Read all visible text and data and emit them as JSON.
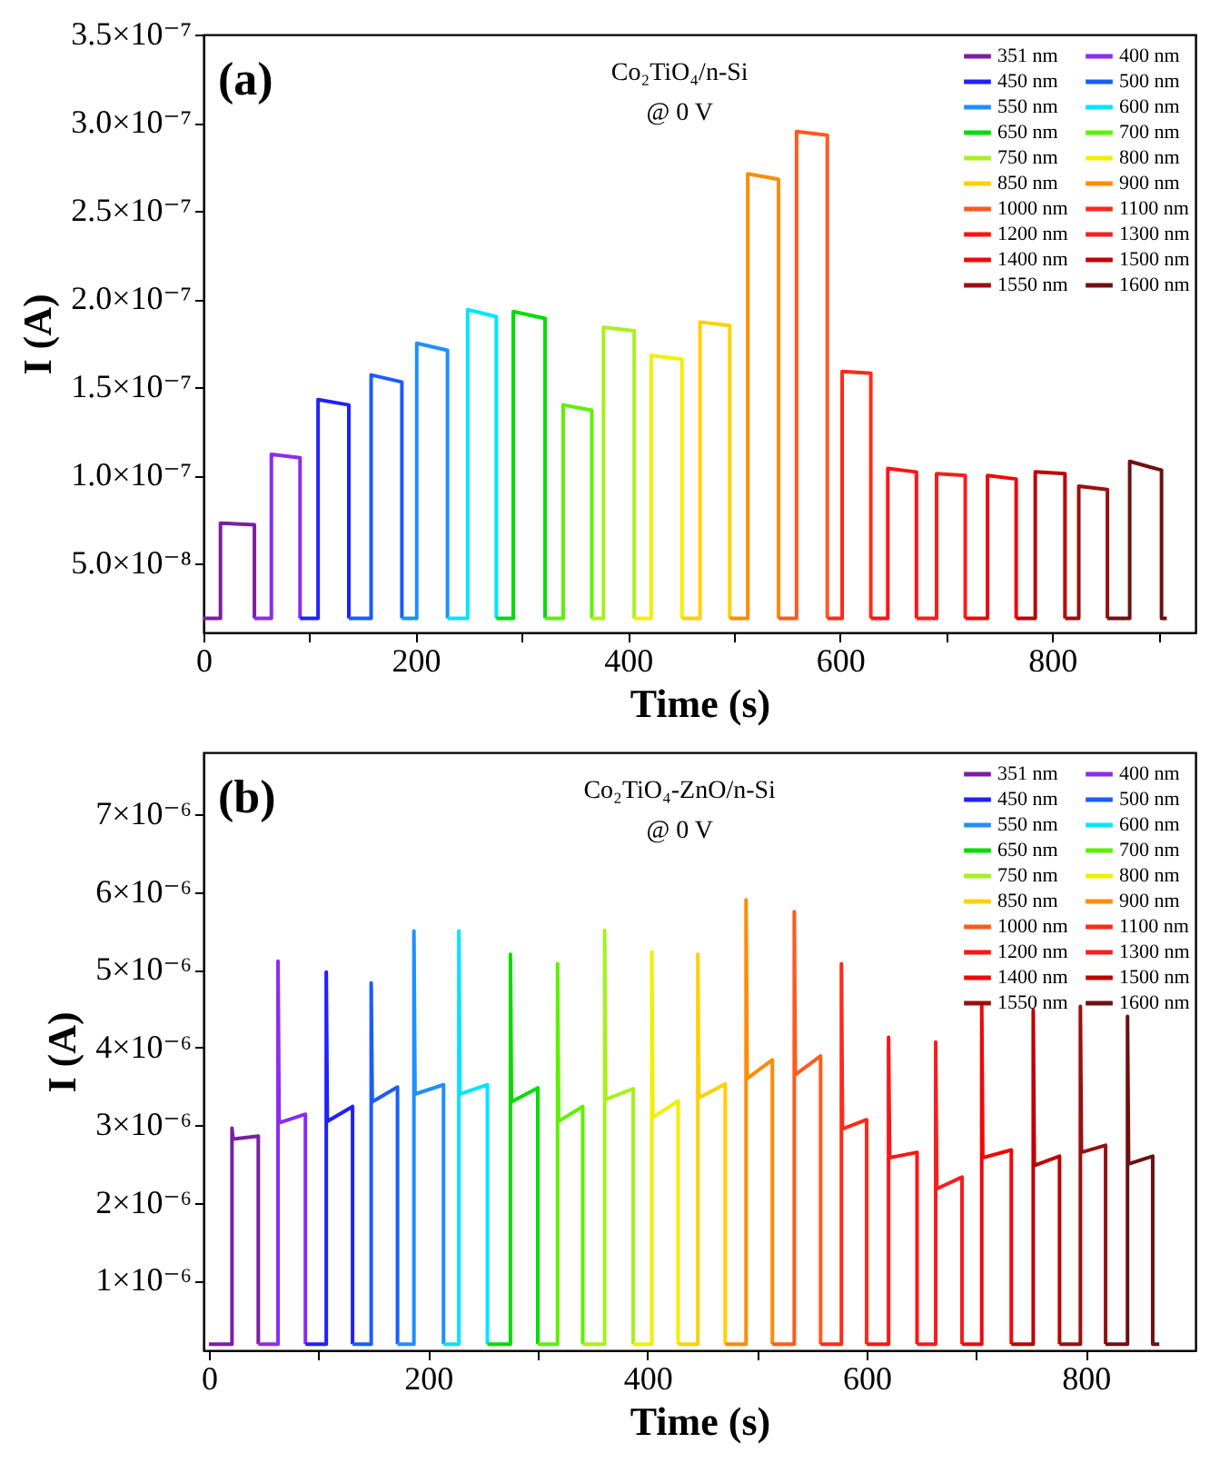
{
  "chart_data": [
    {
      "type": "line",
      "title": "(a)",
      "annotations": [
        "Co₂TiO₄/n-Si",
        "@ 0 V"
      ],
      "xlabel": "Time (s)",
      "ylabel": "I (A)",
      "legend": "top right",
      "xlim": [
        0,
        935
      ],
      "ylim": [
        1.1e-08,
        3.5e-07
      ],
      "xticks": [
        0,
        {
          "value": 100,
          "label": null
        },
        200,
        {
          "value": 300,
          "label": null
        },
        400,
        {
          "value": 500,
          "label": null
        },
        600,
        {
          "value": 700,
          "label": null
        },
        800,
        {
          "value": 900,
          "label": null
        }
      ],
      "yticks": [
        {
          "value": 5e-08,
          "label": "5.0×10⁻⁸"
        },
        {
          "value": 1e-07,
          "label": "1.0×10⁻⁷"
        },
        {
          "value": 1.5e-07,
          "label": "1.5×10⁻⁷"
        },
        {
          "value": 2e-07,
          "label": "2.0×10⁻⁷"
        },
        {
          "value": 2.5e-07,
          "label": "2.5×10⁻⁷"
        },
        {
          "value": 3e-07,
          "label": "3.0×10⁻⁷"
        },
        {
          "value": 3.5e-07,
          "label": "3.5×10⁻⁷"
        }
      ],
      "series": [
        {
          "name": "351 nm",
          "color": "#7b1fa2",
          "x": [
            0,
            16,
            16,
            48,
            48
          ],
          "values": [
            1.9e-08,
            1.9e-08,
            7.3e-08,
            7.2e-08,
            1.9e-08
          ]
        },
        {
          "name": "400 nm",
          "color": "#8b2cf0",
          "x": [
            48,
            64,
            64,
            91,
            91
          ],
          "values": [
            1.9e-08,
            1.9e-08,
            1.12e-07,
            1.1e-07,
            1.9e-08
          ]
        },
        {
          "name": "450 nm",
          "color": "#2020ff",
          "x": [
            91,
            108,
            108,
            137,
            137
          ],
          "values": [
            1.9e-08,
            1.9e-08,
            1.43e-07,
            1.4e-07,
            1.9e-08
          ]
        },
        {
          "name": "500 nm",
          "color": "#1a5cff",
          "x": [
            137,
            158,
            158,
            187,
            187
          ],
          "values": [
            1.9e-08,
            1.9e-08,
            1.57e-07,
            1.53e-07,
            1.9e-08
          ]
        },
        {
          "name": "550 nm",
          "color": "#1e90ff",
          "x": [
            187,
            201,
            201,
            230,
            230
          ],
          "values": [
            1.9e-08,
            1.9e-08,
            1.75e-07,
            1.71e-07,
            1.9e-08
          ]
        },
        {
          "name": "600 nm",
          "color": "#00e5ff",
          "x": [
            230,
            249,
            249,
            276,
            276
          ],
          "values": [
            1.9e-08,
            1.9e-08,
            1.94e-07,
            1.9e-07,
            1.9e-08
          ]
        },
        {
          "name": "650 nm",
          "color": "#00dd00",
          "x": [
            276,
            292,
            292,
            322,
            322
          ],
          "values": [
            1.9e-08,
            1.9e-08,
            1.93e-07,
            1.89e-07,
            1.9e-08
          ]
        },
        {
          "name": "700 nm",
          "color": "#5ef000",
          "x": [
            322,
            339,
            339,
            366,
            366
          ],
          "values": [
            1.9e-08,
            1.9e-08,
            1.4e-07,
            1.37e-07,
            1.9e-08
          ]
        },
        {
          "name": "750 nm",
          "color": "#a8f020",
          "x": [
            366,
            377,
            377,
            406,
            406
          ],
          "values": [
            1.9e-08,
            1.9e-08,
            1.84e-07,
            1.82e-07,
            1.9e-08
          ]
        },
        {
          "name": "800 nm",
          "color": "#f0f000",
          "x": [
            406,
            422,
            422,
            451,
            451
          ],
          "values": [
            1.9e-08,
            1.9e-08,
            1.68e-07,
            1.66e-07,
            1.9e-08
          ]
        },
        {
          "name": "850 nm",
          "color": "#ffd000",
          "x": [
            451,
            468,
            468,
            496,
            496
          ],
          "values": [
            1.9e-08,
            1.9e-08,
            1.87e-07,
            1.85e-07,
            1.9e-08
          ]
        },
        {
          "name": "900 nm",
          "color": "#ff8c00",
          "x": [
            496,
            513,
            513,
            542,
            542
          ],
          "values": [
            1.9e-08,
            1.9e-08,
            2.71e-07,
            2.68e-07,
            1.9e-08
          ]
        },
        {
          "name": "1000 nm",
          "color": "#ff5a1e",
          "x": [
            542,
            559,
            559,
            588,
            588
          ],
          "values": [
            1.9e-08,
            1.9e-08,
            2.95e-07,
            2.93e-07,
            1.9e-08
          ]
        },
        {
          "name": "1100 nm",
          "color": "#ff2a1a",
          "x": [
            588,
            602,
            602,
            629,
            629
          ],
          "values": [
            1.9e-08,
            1.9e-08,
            1.59e-07,
            1.58e-07,
            1.9e-08
          ]
        },
        {
          "name": "1200 nm",
          "color": "#ff1414",
          "x": [
            629,
            645,
            645,
            672,
            672
          ],
          "values": [
            1.9e-08,
            1.9e-08,
            1.04e-07,
            1.02e-07,
            1.9e-08
          ]
        },
        {
          "name": "1300 nm",
          "color": "#f51e1e",
          "x": [
            672,
            691,
            691,
            718,
            718
          ],
          "values": [
            1.9e-08,
            1.9e-08,
            1.01e-07,
            1e-07,
            1.9e-08
          ]
        },
        {
          "name": "1400 nm",
          "color": "#f00808",
          "x": [
            718,
            739,
            739,
            766,
            766
          ],
          "values": [
            1.9e-08,
            1.9e-08,
            1e-07,
            9.8e-08,
            1.9e-08
          ]
        },
        {
          "name": "1500 nm",
          "color": "#c00000",
          "x": [
            766,
            784,
            784,
            812,
            812
          ],
          "values": [
            1.9e-08,
            1.9e-08,
            1.02e-07,
            1.01e-07,
            1.9e-08
          ]
        },
        {
          "name": "1550 nm",
          "color": "#9a1010",
          "x": [
            812,
            825,
            825,
            852,
            852
          ],
          "values": [
            1.9e-08,
            1.9e-08,
            9.4e-08,
            9.2e-08,
            1.9e-08
          ]
        },
        {
          "name": "1600 nm",
          "color": "#6e1010",
          "x": [
            852,
            873,
            873,
            903,
            903,
            908
          ],
          "values": [
            1.9e-08,
            1.9e-08,
            1.08e-07,
            1.03e-07,
            1.9e-08,
            1.9e-08
          ]
        }
      ]
    },
    {
      "type": "line",
      "title": "(b)",
      "annotations": [
        "Co₂TiO₄-ZnO/n-Si",
        "@ 0 V"
      ],
      "xlabel": "Time (s)",
      "ylabel": "I (A)",
      "legend": "top right",
      "xlim": [
        -5,
        900
      ],
      "ylim": [
        1e-07,
        7.8e-06
      ],
      "xticks": [
        0,
        {
          "value": 100,
          "label": null
        },
        200,
        {
          "value": 300,
          "label": null
        },
        400,
        {
          "value": 500,
          "label": null
        },
        600,
        {
          "value": 700,
          "label": null
        },
        800
      ],
      "yticks": [
        {
          "value": 1e-06,
          "label": "1×10⁻⁶"
        },
        {
          "value": 2e-06,
          "label": "2×10⁻⁶"
        },
        {
          "value": 3e-06,
          "label": "3×10⁻⁶"
        },
        {
          "value": 4e-06,
          "label": "4×10⁻⁶"
        },
        {
          "value": 5e-06,
          "label": "5×10⁻⁶"
        },
        {
          "value": 6e-06,
          "label": "6×10⁻⁶"
        },
        {
          "value": 7e-06,
          "label": "7×10⁻⁶"
        }
      ],
      "series": [
        {
          "name": "351 nm",
          "color": "#7b1fa2",
          "x": [
            0,
            21,
            21,
            22,
            45,
            45
          ],
          "values": [
            1.8e-07,
            1.8e-07,
            2.96e-06,
            2.82e-06,
            2.86e-06,
            1.8e-07
          ]
        },
        {
          "name": "400 nm",
          "color": "#8b2cf0",
          "x": [
            45,
            63,
            63,
            64,
            88,
            88
          ],
          "values": [
            1.8e-07,
            1.8e-07,
            5.11e-06,
            3.03e-06,
            3.14e-06,
            1.8e-07
          ]
        },
        {
          "name": "450 nm",
          "color": "#2020ff",
          "x": [
            88,
            107,
            107,
            108,
            131,
            131
          ],
          "values": [
            1.8e-07,
            1.8e-07,
            4.97e-06,
            3.05e-06,
            3.24e-06,
            1.8e-07
          ]
        },
        {
          "name": "500 nm",
          "color": "#1a5cff",
          "x": [
            131,
            148,
            148,
            149,
            172,
            172
          ],
          "values": [
            1.8e-07,
            1.8e-07,
            4.83e-06,
            3.3e-06,
            3.49e-06,
            1.8e-07
          ]
        },
        {
          "name": "550 nm",
          "color": "#1e90ff",
          "x": [
            172,
            187,
            187,
            188,
            214,
            214
          ],
          "values": [
            1.8e-07,
            1.8e-07,
            5.5e-06,
            3.4e-06,
            3.52e-06,
            1.8e-07
          ]
        },
        {
          "name": "600 nm",
          "color": "#00e5ff",
          "x": [
            214,
            228,
            228,
            229,
            254,
            254
          ],
          "values": [
            1.8e-07,
            1.8e-07,
            5.5e-06,
            3.4e-06,
            3.52e-06,
            1.8e-07
          ]
        },
        {
          "name": "650 nm",
          "color": "#00dd00",
          "x": [
            254,
            275,
            275,
            276,
            300,
            300
          ],
          "values": [
            1.8e-07,
            1.8e-07,
            5.2e-06,
            3.3e-06,
            3.48e-06,
            1.8e-07
          ]
        },
        {
          "name": "700 nm",
          "color": "#5ef000",
          "x": [
            300,
            318,
            318,
            319,
            341,
            341
          ],
          "values": [
            1.8e-07,
            1.8e-07,
            5.08e-06,
            3.05e-06,
            3.24e-06,
            1.8e-07
          ]
        },
        {
          "name": "750 nm",
          "color": "#a8f020",
          "x": [
            341,
            361,
            361,
            362,
            387,
            387
          ],
          "values": [
            1.8e-07,
            1.8e-07,
            5.51e-06,
            3.33e-06,
            3.47e-06,
            1.8e-07
          ]
        },
        {
          "name": "800 nm",
          "color": "#f0f000",
          "x": [
            387,
            404,
            404,
            405,
            428,
            428
          ],
          "values": [
            1.8e-07,
            1.8e-07,
            5.23e-06,
            3.1e-06,
            3.31e-06,
            1.8e-07
          ]
        },
        {
          "name": "850 nm",
          "color": "#ffd000",
          "x": [
            428,
            446,
            446,
            447,
            471,
            471
          ],
          "values": [
            1.8e-07,
            1.8e-07,
            5.2e-06,
            3.35e-06,
            3.53e-06,
            1.8e-07
          ]
        },
        {
          "name": "900 nm",
          "color": "#ff8c00",
          "x": [
            471,
            490,
            490,
            491,
            514,
            514
          ],
          "values": [
            1.8e-07,
            1.8e-07,
            5.9e-06,
            3.6e-06,
            3.84e-06,
            1.8e-07
          ]
        },
        {
          "name": "1000 nm",
          "color": "#ff5a1e",
          "x": [
            514,
            534,
            534,
            535,
            558,
            558
          ],
          "values": [
            1.8e-07,
            1.8e-07,
            5.75e-06,
            3.65e-06,
            3.89e-06,
            1.8e-07
          ]
        },
        {
          "name": "1100 nm",
          "color": "#ff2a1a",
          "x": [
            558,
            577,
            577,
            578,
            600,
            600
          ],
          "values": [
            1.8e-07,
            1.8e-07,
            5.08e-06,
            2.95e-06,
            3.07e-06,
            1.8e-07
          ]
        },
        {
          "name": "1200 nm",
          "color": "#ff1414",
          "x": [
            600,
            620,
            620,
            621,
            646,
            646
          ],
          "values": [
            1.8e-07,
            1.8e-07,
            4.13e-06,
            2.58e-06,
            2.65e-06,
            1.8e-07
          ]
        },
        {
          "name": "1300 nm",
          "color": "#f51e1e",
          "x": [
            646,
            663,
            663,
            664,
            687,
            687
          ],
          "values": [
            1.8e-07,
            1.8e-07,
            4.07e-06,
            2.18e-06,
            2.33e-06,
            1.8e-07
          ]
        },
        {
          "name": "1400 nm",
          "color": "#f00808",
          "x": [
            687,
            705,
            705,
            706,
            732,
            732
          ],
          "values": [
            1.8e-07,
            1.8e-07,
            4.56e-06,
            2.58e-06,
            2.68e-06,
            1.8e-07
          ]
        },
        {
          "name": "1500 nm",
          "color": "#c00000",
          "x": [
            732,
            752,
            752,
            753,
            776,
            776
          ],
          "values": [
            1.8e-07,
            1.8e-07,
            4.48e-06,
            2.48e-06,
            2.6e-06,
            1.8e-07
          ]
        },
        {
          "name": "1550 nm",
          "color": "#9a1010",
          "x": [
            776,
            795,
            795,
            796,
            818,
            818
          ],
          "values": [
            1.8e-07,
            1.8e-07,
            4.53e-06,
            2.65e-06,
            2.74e-06,
            1.8e-07
          ]
        },
        {
          "name": "1600 nm",
          "color": "#6e1010",
          "x": [
            818,
            838,
            838,
            839,
            861,
            861,
            867
          ],
          "values": [
            1.8e-07,
            1.8e-07,
            4.4e-06,
            2.5e-06,
            2.6e-06,
            1.8e-07,
            1.8e-07
          ]
        }
      ]
    }
  ]
}
